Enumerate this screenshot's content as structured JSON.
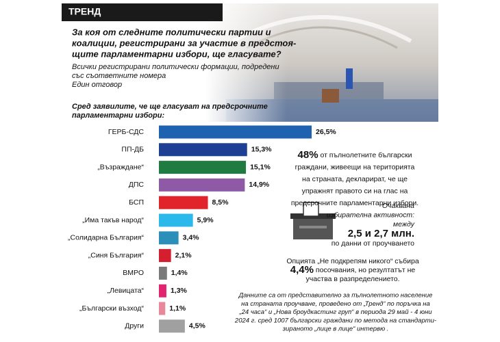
{
  "chart_data": {
    "type": "bar",
    "orientation": "horizontal",
    "header": "ТРЕНД",
    "title_lines": [
      "За коя от следните политически партии и",
      "коалиции, регистрирани за участие в предстоя-",
      "щите парламентарни избори, ще гласувате?"
    ],
    "subtitle_lines": [
      "Всички регистрирани политически формации, подредени",
      "със съответните номера",
      "Един отговор"
    ],
    "chart_label_lines": [
      "Сред заявилите, че ще гласуват на предсрочните",
      "парламентарни избори:"
    ],
    "categories": [
      "ГЕРБ-СДС",
      "ПП-ДБ",
      "„Възраждане“",
      "ДПС",
      "БСП",
      "„Има такъв народ“",
      "„Солидарна България“",
      "„Синя България“",
      "ВМРО",
      "„Левицата“",
      "„Български възход“",
      "Други"
    ],
    "values": [
      26.5,
      15.3,
      15.1,
      14.9,
      8.5,
      5.9,
      3.4,
      2.1,
      1.4,
      1.3,
      1.1,
      4.5
    ],
    "value_labels": [
      "26,5%",
      "15,3%",
      "15,1%",
      "14,9%",
      "8,5%",
      "5,9%",
      "3,4%",
      "2,1%",
      "1,4%",
      "1,3%",
      "1,1%",
      "4,5%"
    ],
    "colors": [
      "#1f63b0",
      "#1d3f94",
      "#1f7b3f",
      "#8e5aa5",
      "#e1232c",
      "#2bb8ea",
      "#2b8fb9",
      "#d41f30",
      "#7a7a7a",
      "#e2236f",
      "#e7899a",
      "#a0a0a0"
    ],
    "annotations": {
      "turnout_share": {
        "number": "48%",
        "lines": [
          " от пълнолетните български",
          "граждани, живеещи на територията",
          "на страната, декларират, че ще",
          "упражнят правото си на глас на",
          "предсрочните парламентарни избори."
        ]
      },
      "expected_turnout": {
        "lines": [
          "Очаквана",
          "избирателна активност:",
          "между"
        ],
        "range": "2,5 и 2,7 млн.",
        "source": "по данни от проучването"
      },
      "none_option": {
        "line1": "Опцията „Не подкрепям никого“ събира",
        "number": "4,4%",
        "line2": " посочвания, но резултатът не",
        "line3": "участва в разпределението."
      },
      "footnote_lines": [
        "Данните са от представително за пълнолетното население",
        "на страната проучване, проведено от „Тренд“ по поръчка на",
        "„24 часа“ и „Нова броудкастинг груп“ в периода 29 май - 4 юни",
        "2024 г. сред 1007 български граждани по метода на стандарти-",
        "зираното „лице в лице“ интервю ."
      ]
    }
  }
}
